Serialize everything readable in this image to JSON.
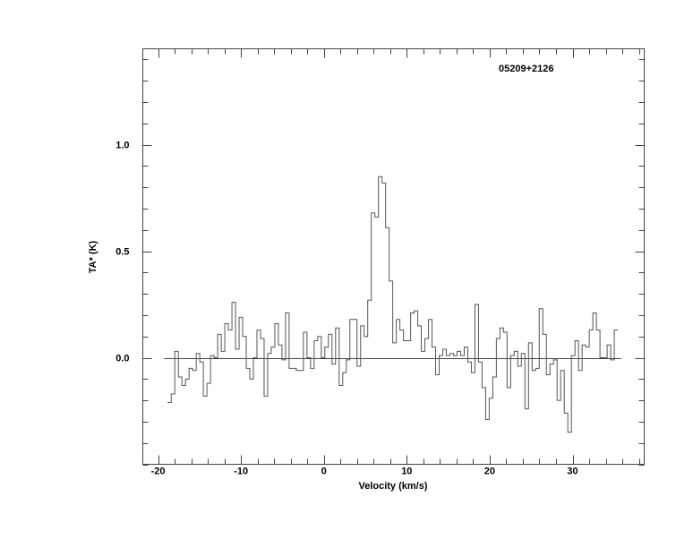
{
  "chart_data": {
    "type": "line",
    "style": "histogram-step",
    "annotation": "05209+2126",
    "xlabel": "Velocity (km/s)",
    "ylabel": "TA* (K)",
    "xlim": [
      -21.84,
      38.64
    ],
    "ylim": [
      -0.5,
      1.45
    ],
    "x_major_ticks": [
      -20,
      -10,
      0,
      10,
      20,
      30
    ],
    "x_tick_labels": [
      "-20",
      "-10",
      "0",
      "10",
      "20",
      "30"
    ],
    "x_minor_step": 2,
    "y_major_ticks": [
      0.0,
      0.5,
      1.0
    ],
    "y_tick_labels": [
      "0.0",
      "0.5",
      "1.0"
    ],
    "y_minor_step": 0.1,
    "grid": false,
    "baseline": 0.0,
    "colors": {
      "spectrum": "#555555",
      "frame": "#444444"
    },
    "velocity_start": -18.63,
    "channel_width": 0.431,
    "values": [
      -0.21,
      -0.17,
      0.03,
      -0.09,
      -0.13,
      -0.1,
      -0.05,
      -0.06,
      0.02,
      -0.02,
      -0.18,
      -0.12,
      0.01,
      0.0,
      0.11,
      0.03,
      0.16,
      0.13,
      0.26,
      0.04,
      0.19,
      0.1,
      -0.05,
      -0.1,
      0.0,
      0.13,
      0.09,
      -0.18,
      0.02,
      0.05,
      0.16,
      0.06,
      -0.01,
      0.21,
      -0.05,
      -0.05,
      -0.06,
      -0.06,
      0.12,
      0.0,
      -0.05,
      0.08,
      0.1,
      0.0,
      0.05,
      0.11,
      -0.03,
      0.14,
      -0.13,
      -0.07,
      -0.01,
      0.18,
      0.18,
      -0.04,
      0.15,
      0.1,
      0.27,
      0.68,
      0.66,
      0.85,
      0.82,
      0.61,
      0.36,
      0.07,
      0.18,
      0.13,
      0.08,
      0.08,
      0.21,
      0.22,
      0.15,
      0.03,
      0.09,
      0.18,
      0.05,
      -0.08,
      0.01,
      0.04,
      0.01,
      0.02,
      0.01,
      0.03,
      0.01,
      0.05,
      -0.02,
      -0.07,
      0.25,
      -0.02,
      -0.14,
      -0.29,
      -0.19,
      -0.09,
      0.09,
      0.14,
      0.12,
      -0.14,
      0.01,
      0.03,
      -0.04,
      0.02,
      -0.24,
      0.07,
      -0.06,
      -0.05,
      0.23,
      0.11,
      -0.08,
      -0.03,
      -0.01,
      -0.2,
      -0.06,
      -0.26,
      -0.35,
      0.01,
      0.08,
      -0.06,
      0.06,
      0.05,
      0.13,
      0.21,
      0.13,
      0.0,
      0.0,
      0.06,
      -0.01,
      0.13
    ]
  }
}
